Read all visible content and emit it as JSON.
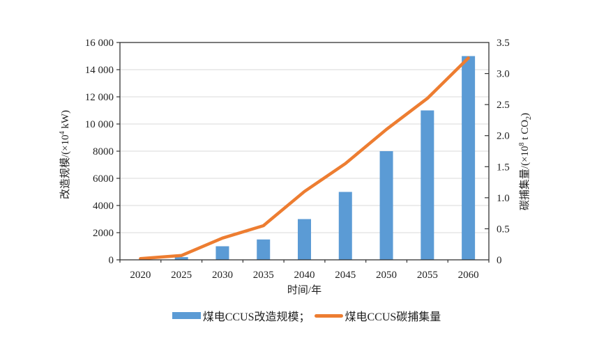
{
  "chart_data": {
    "type": "bar",
    "subtype": "bar+line dual-axis combo",
    "categories": [
      "2020",
      "2025",
      "2030",
      "2035",
      "2040",
      "2045",
      "2050",
      "2055",
      "2060"
    ],
    "series": [
      {
        "name": "煤电CCUS改造规模",
        "chart": "bar",
        "axis": "left",
        "color": "#5B9BD5",
        "values": [
          0,
          200,
          1000,
          1500,
          3000,
          5000,
          8000,
          11000,
          15000
        ]
      },
      {
        "name": "煤电CCUS碳捕集量",
        "chart": "line",
        "axis": "right",
        "color": "#ED7D31",
        "values": [
          0.02,
          0.07,
          0.35,
          0.55,
          1.1,
          1.55,
          2.1,
          2.6,
          3.25
        ]
      }
    ],
    "xlabel": "时间/年",
    "left_axis": {
      "label": "改造规模/(×10⁴ kW)",
      "min": 0,
      "max": 16000,
      "ticks": [
        {
          "v": 16000,
          "label": "16 000"
        },
        {
          "v": 14000,
          "label": "14 000"
        },
        {
          "v": 12000,
          "label": "12 000"
        },
        {
          "v": 10000,
          "label": "10 000"
        },
        {
          "v": 8000,
          "label": "8000"
        },
        {
          "v": 6000,
          "label": "6000"
        },
        {
          "v": 4000,
          "label": "4000"
        },
        {
          "v": 2000,
          "label": "2000"
        },
        {
          "v": 0,
          "label": "0"
        }
      ]
    },
    "right_axis": {
      "label": "碳捕集量/(×10⁸ t CO₂)",
      "min": 0,
      "max": 3.5,
      "ticks": [
        {
          "v": 3.5,
          "label": "3.5"
        },
        {
          "v": 3.0,
          "label": "3.0"
        },
        {
          "v": 2.5,
          "label": "2.5"
        },
        {
          "v": 2.0,
          "label": "2.0"
        },
        {
          "v": 1.5,
          "label": "1.5"
        },
        {
          "v": 1.0,
          "label": "1.0"
        },
        {
          "v": 0.5,
          "label": "0.5"
        },
        {
          "v": 0,
          "label": "0"
        }
      ]
    },
    "grid": "horizontal gridlines at left-axis ticks",
    "legend_position": "bottom center",
    "colors": {
      "bar": "#5B9BD5",
      "line": "#ED7D31",
      "gridline": "#D9D9D9",
      "frame": "#333333",
      "text": "#1F1F1F"
    }
  },
  "axis_label_parts": {
    "left": {
      "pre": "改造规模/(×10",
      "sup": "4",
      "post": " kW)"
    },
    "right": {
      "pre": "碳捕集量/(×10",
      "sup": "8",
      "mid": " t CO",
      "sub": "2",
      "post": ")"
    }
  },
  "legend": {
    "items": [
      {
        "label": "煤电CCUS改造规模；",
        "swatch": "bar-swatch"
      },
      {
        "label": "煤电CCUS碳捕集量",
        "swatch": "line-swatch"
      }
    ]
  }
}
